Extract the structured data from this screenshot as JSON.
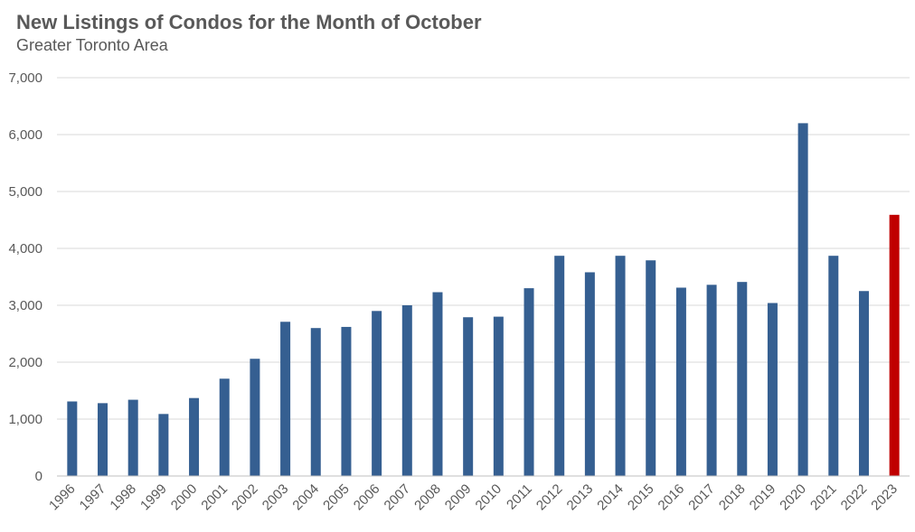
{
  "chart_data": {
    "type": "bar",
    "title": "New Listings of Condos for the Month of October",
    "subtitle": "Greater Toronto Area",
    "xlabel": "",
    "ylabel": "",
    "ylim": [
      0,
      7000
    ],
    "yticks": [
      0,
      1000,
      2000,
      3000,
      4000,
      5000,
      6000,
      7000
    ],
    "ytick_labels": [
      "0",
      "1,000",
      "2,000",
      "3,000",
      "4,000",
      "5,000",
      "6,000",
      "7,000"
    ],
    "grid": true,
    "legend": "none",
    "categories": [
      "1996",
      "1997",
      "1998",
      "1999",
      "2000",
      "2001",
      "2002",
      "2003",
      "2004",
      "2005",
      "2006",
      "2007",
      "2008",
      "2009",
      "2010",
      "2011",
      "2012",
      "2013",
      "2014",
      "2015",
      "2016",
      "2017",
      "2018",
      "2019",
      "2020",
      "2021",
      "2022",
      "2023"
    ],
    "values": [
      1310,
      1280,
      1340,
      1090,
      1370,
      1710,
      2060,
      2710,
      2600,
      2620,
      2900,
      3000,
      3230,
      2790,
      2800,
      3300,
      3870,
      3580,
      3870,
      3790,
      3310,
      3360,
      3410,
      3040,
      6200,
      3870,
      3250,
      4590
    ],
    "colors": {
      "bar": "#355F91",
      "highlight": "#C00000",
      "grid": "#D9D9D9",
      "axis": "#BFBFBF"
    },
    "highlight_category": "2023"
  }
}
